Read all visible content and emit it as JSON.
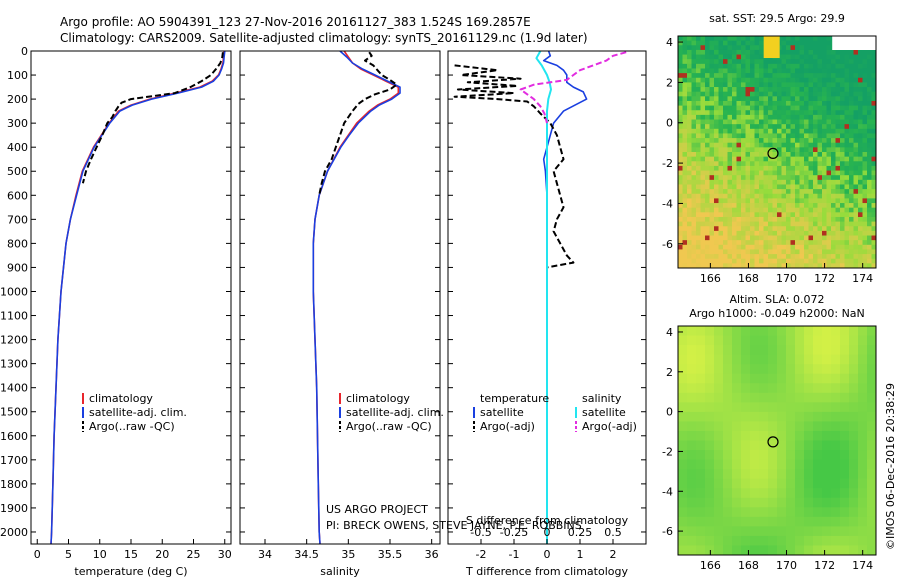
{
  "header": {
    "line1": "Argo profile: AO 5904391_123 27-Nov-2016 20161127_383 1.524S 169.2857E",
    "line2": "Climatology: CARS2009. Satellite-adjusted climatology: synTS_20161129.nc (1.9d later)"
  },
  "colors": {
    "climatology": "#e8262d",
    "satellite": "#1a3fe0",
    "argo": "#000000",
    "satellite_salinity": "#22e5f0",
    "argo_salinity_adj": "#e22de0"
  },
  "depth_ticks": [
    "0",
    "100",
    "200",
    "300",
    "400",
    "500",
    "600",
    "700",
    "800",
    "900",
    "1000",
    "1100",
    "1200",
    "1300",
    "1400",
    "1500",
    "1600",
    "1700",
    "1800",
    "1900",
    "2000"
  ],
  "chart_data": [
    {
      "type": "line",
      "xlabel": "temperature (deg C)",
      "xlim": [
        -1,
        31
      ],
      "ylim": [
        2050,
        0
      ],
      "xticks": [
        "0",
        "5",
        "10",
        "15",
        "20",
        "25",
        "30"
      ],
      "legend": [
        "climatology",
        "satellite-adj. clim.",
        "Argo(..raw -QC)"
      ],
      "series": [
        {
          "name": "climatology",
          "depth": [
            0,
            25,
            50,
            75,
            100,
            125,
            150,
            175,
            200,
            225,
            250,
            300,
            400,
            500,
            600,
            700,
            800,
            1000,
            1200,
            1400,
            1600,
            1800,
            2000,
            2050
          ],
          "values": [
            29.9,
            29.8,
            29.7,
            29.4,
            29.0,
            28.0,
            26.0,
            22.0,
            18.0,
            15.0,
            13.0,
            11.5,
            9.0,
            7.2,
            6.2,
            5.3,
            4.6,
            3.8,
            3.3,
            3.0,
            2.7,
            2.5,
            2.3,
            2.2
          ]
        },
        {
          "name": "satellite-adj. clim.",
          "depth": [
            0,
            25,
            50,
            75,
            100,
            125,
            150,
            175,
            200,
            225,
            250,
            300,
            400,
            500,
            600,
            700,
            800,
            1000,
            1200,
            1400,
            1600,
            1800,
            2000,
            2050
          ],
          "values": [
            30.0,
            29.9,
            29.8,
            29.5,
            29.1,
            28.2,
            26.3,
            22.5,
            18.3,
            15.2,
            13.2,
            11.6,
            9.1,
            7.3,
            6.3,
            5.3,
            4.6,
            3.8,
            3.3,
            3.0,
            2.7,
            2.5,
            2.3,
            2.2
          ]
        },
        {
          "name": "Argo(..raw -QC)",
          "depth": [
            5,
            25,
            50,
            75,
            100,
            125,
            150,
            175,
            200,
            215,
            230,
            250,
            275,
            300,
            325,
            350,
            400,
            450,
            500,
            550
          ],
          "values": [
            29.7,
            29.6,
            29.3,
            28.6,
            27.8,
            26.3,
            24.5,
            22.0,
            15.0,
            13.5,
            13.0,
            12.5,
            12.0,
            11.2,
            10.8,
            10.4,
            9.5,
            8.6,
            7.8,
            7.3
          ]
        }
      ]
    },
    {
      "type": "line",
      "xlabel": "salinity",
      "xlim": [
        33.7,
        36.1
      ],
      "ylim": [
        2050,
        0
      ],
      "xticks": [
        "34",
        "34.5",
        "35",
        "35.5",
        "36"
      ],
      "legend": [
        "climatology",
        "satellite-adj. clim.",
        "Argo(..raw -QC)"
      ],
      "series": [
        {
          "name": "climatology",
          "depth": [
            0,
            25,
            50,
            75,
            100,
            125,
            150,
            175,
            200,
            225,
            250,
            300,
            350,
            400,
            500,
            600,
            700,
            800,
            1000,
            1200,
            1400,
            1600,
            1800,
            2000,
            2050
          ],
          "values": [
            34.95,
            35.0,
            35.05,
            35.15,
            35.3,
            35.45,
            35.6,
            35.6,
            35.5,
            35.35,
            35.25,
            35.1,
            35.0,
            34.9,
            34.75,
            34.65,
            34.6,
            34.58,
            34.58,
            34.6,
            34.62,
            34.63,
            34.64,
            34.65,
            34.66
          ]
        },
        {
          "name": "satellite-adj. clim.",
          "depth": [
            0,
            25,
            50,
            75,
            100,
            125,
            150,
            175,
            200,
            225,
            250,
            300,
            350,
            400,
            500,
            600,
            700,
            800,
            1000,
            1200,
            1400,
            1600,
            1800,
            2000,
            2050
          ],
          "values": [
            34.9,
            34.98,
            35.05,
            35.17,
            35.32,
            35.47,
            35.62,
            35.62,
            35.52,
            35.37,
            35.27,
            35.12,
            35.01,
            34.91,
            34.75,
            34.65,
            34.6,
            34.58,
            34.58,
            34.6,
            34.62,
            34.63,
            34.64,
            34.65,
            34.66
          ]
        },
        {
          "name": "Argo(..raw -QC)",
          "depth": [
            5,
            20,
            40,
            60,
            80,
            100,
            120,
            140,
            160,
            180,
            200,
            220,
            250,
            300,
            350,
            400,
            450,
            500,
            550,
            600
          ],
          "values": [
            35.25,
            35.28,
            35.2,
            35.3,
            35.35,
            35.4,
            35.5,
            35.58,
            35.5,
            35.32,
            35.2,
            35.12,
            35.05,
            34.95,
            34.9,
            34.85,
            34.8,
            34.72,
            34.68,
            34.65
          ]
        }
      ]
    },
    {
      "type": "line",
      "xlabel": "T difference from climatology",
      "xlabel2": "S difference from climatology",
      "xlim": [
        -3,
        3
      ],
      "xlim2": [
        -0.75,
        0.75
      ],
      "ylim": [
        2050,
        0
      ],
      "xticks": [
        "-2",
        "-1",
        "0",
        "1",
        "2"
      ],
      "xticks2": [
        "-0.5",
        "-0.25",
        "0",
        "0.25",
        "0.5"
      ],
      "legend_titles": [
        "temperature",
        "salinity"
      ],
      "legend": [
        "satellite",
        "Argo(-adj)",
        "satellite",
        "Argo(-adj)"
      ],
      "series": [
        {
          "name": "satellite",
          "kind": "temperature",
          "depth": [
            0,
            20,
            40,
            60,
            80,
            100,
            130,
            150,
            170,
            200,
            250,
            300,
            350,
            400,
            450,
            500,
            600,
            700,
            800,
            1000,
            1200,
            1500,
            1800,
            2000,
            2050
          ],
          "values": [
            0.05,
            0.1,
            -0.1,
            0.3,
            0.5,
            0.6,
            0.6,
            0.8,
            1.1,
            1.2,
            0.5,
            0.2,
            0.1,
            0.0,
            -0.1,
            -0.05,
            0.0,
            0.0,
            0.0,
            0.0,
            0.0,
            0.0,
            0.0,
            0.0,
            0.0
          ]
        },
        {
          "name": "Argo(-adj)",
          "kind": "temperature",
          "depth": [
            60,
            80,
            100,
            115,
            130,
            145,
            160,
            175,
            190,
            200,
            210,
            230,
            260,
            300,
            350,
            400,
            450,
            500,
            550,
            600,
            650,
            700,
            750,
            800,
            850,
            880,
            900
          ],
          "values": [
            -2.8,
            -1.5,
            -2.6,
            -0.8,
            -2.4,
            -0.9,
            -2.7,
            -1.0,
            -2.8,
            -1.5,
            -0.6,
            -0.4,
            -0.2,
            0.1,
            0.3,
            0.4,
            0.5,
            0.2,
            0.3,
            0.4,
            0.5,
            0.3,
            0.2,
            0.4,
            0.6,
            0.8,
            0.0
          ]
        },
        {
          "name": "satellite",
          "kind": "salinity",
          "depth": [
            0,
            30,
            60,
            100,
            130,
            160,
            200,
            250,
            300,
            400,
            500,
            700,
            1000,
            1500,
            2000,
            2050
          ],
          "values": [
            -0.05,
            -0.08,
            -0.04,
            0.0,
            0.02,
            0.03,
            0.01,
            0.0,
            0.0,
            0.0,
            0.0,
            0.0,
            0.0,
            0.0,
            0.0,
            0.0
          ]
        },
        {
          "name": "Argo(-adj)",
          "kind": "salinity",
          "depth": [
            5,
            20,
            40,
            60,
            80,
            100,
            120,
            140,
            160,
            180,
            200,
            230,
            260,
            300
          ],
          "values": [
            0.6,
            0.5,
            0.45,
            0.35,
            0.25,
            0.2,
            0.15,
            -0.1,
            -0.2,
            -0.15,
            -0.1,
            -0.05,
            -0.02,
            0.0
          ]
        }
      ]
    },
    {
      "type": "heatmap",
      "title": "sat. SST: 29.5  Argo: 29.9",
      "xlim": [
        164.3,
        174.7
      ],
      "ylim": [
        -7.2,
        4.3
      ],
      "xticks": [
        "166",
        "168",
        "170",
        "172",
        "174"
      ],
      "yticks": [
        "4",
        "2",
        "0",
        "-2",
        "-4",
        "-6"
      ],
      "marker": {
        "lon": 169.29,
        "lat": -1.52
      }
    },
    {
      "type": "heatmap",
      "title": "Altim. SLA: 0.072",
      "title2": "Argo h1000: -0.049 h2000: NaN",
      "xlim": [
        164.3,
        174.7
      ],
      "ylim": [
        -7.2,
        4.3
      ],
      "xticks": [
        "166",
        "168",
        "170",
        "172",
        "174"
      ],
      "yticks": [
        "4",
        "2",
        "0",
        "-2",
        "-4",
        "-6"
      ],
      "marker": {
        "lon": 169.29,
        "lat": -1.52
      }
    }
  ],
  "footer": {
    "project": "US ARGO PROJECT",
    "pi": "PI: BRECK OWENS, STEVE JAYNE, P.E. ROBBINS",
    "imos": "©IMOS 06-Dec-2016 20:38:29"
  }
}
